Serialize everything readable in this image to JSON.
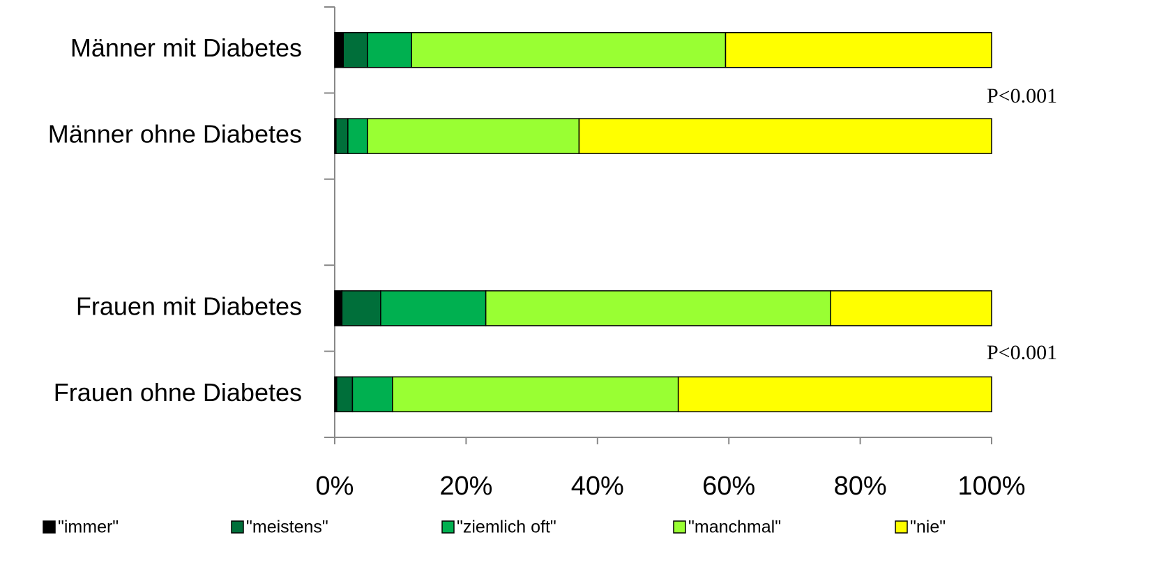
{
  "chart_data": {
    "type": "stacked-bar-horizontal",
    "categories": [
      "Männer mit Diabetes",
      "Männer ohne Diabetes",
      null,
      "Frauen mit Diabetes",
      "Frauen ohne Diabetes"
    ],
    "series": [
      {
        "name": "\"immer\"",
        "color": "#000000",
        "values": [
          1.3,
          0.2,
          null,
          1.1,
          0.3
        ]
      },
      {
        "name": "\"meistens\"",
        "color": "#006f3a",
        "values": [
          3.7,
          1.8,
          null,
          5.9,
          2.4
        ]
      },
      {
        "name": "\"ziemlich oft\"",
        "color": "#00b050",
        "values": [
          6.7,
          3.0,
          null,
          16.0,
          6.1
        ]
      },
      {
        "name": "\"manchmal\"",
        "color": "#99ff33",
        "values": [
          47.8,
          32.2,
          null,
          52.5,
          43.5
        ]
      },
      {
        "name": "\"nie\"",
        "color": "#ffff00",
        "values": [
          40.5,
          62.8,
          null,
          24.5,
          47.7
        ]
      }
    ],
    "xlim": [
      0,
      100
    ],
    "xticks": [
      {
        "value": 0,
        "label": "0%"
      },
      {
        "value": 20,
        "label": "20%"
      },
      {
        "value": 40,
        "label": "40%"
      },
      {
        "value": 60,
        "label": "60%"
      },
      {
        "value": 80,
        "label": "80%"
      },
      {
        "value": 100,
        "label": "100%"
      }
    ],
    "annotations": [
      "P<0.001",
      "P<0.001"
    ],
    "legend": "bottom"
  }
}
